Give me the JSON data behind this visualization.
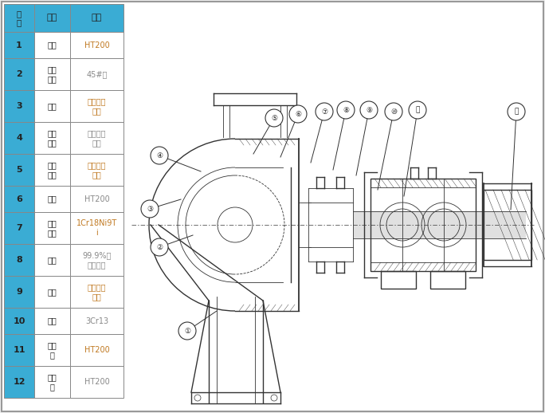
{
  "bg_color": "#f0f0f0",
  "border_color": "#999999",
  "table_blue": "#3aacd4",
  "table_white": "#ffffff",
  "text_black": "#222222",
  "text_orange": "#c07820",
  "text_gray": "#888888",
  "lc": "#333333",
  "rows": [
    {
      "num": "",
      "name": "名称",
      "material": "材质",
      "is_header": true
    },
    {
      "num": "1",
      "name": "泵体",
      "material": "HT200",
      "is_header": false
    },
    {
      "num": "2",
      "name": "叶轮\n骨架",
      "material": "45#钢",
      "is_header": false
    },
    {
      "num": "3",
      "name": "叶轮",
      "material": "聚全氟乙\n丙烯",
      "is_header": false
    },
    {
      "num": "4",
      "name": "泵体\n衬里",
      "material": "聚全氟乙\n丙烯",
      "is_header": false
    },
    {
      "num": "5",
      "name": "泵盖\n衬里",
      "material": "聚全氟乙\n丙烯",
      "is_header": false
    },
    {
      "num": "6",
      "name": "泵盖",
      "material": "HT200",
      "is_header": false
    },
    {
      "num": "7",
      "name": "机封\n压盖",
      "material": "1Cr18Ni9T\ni",
      "is_header": false
    },
    {
      "num": "8",
      "name": "静环",
      "material": "99.9%氧\n化铝陶瓷",
      "is_header": false
    },
    {
      "num": "9",
      "name": "动环",
      "material": "填充四氟\n乙烯",
      "is_header": false
    },
    {
      "num": "10",
      "name": "泵轴",
      "material": "3Cr13",
      "is_header": false
    },
    {
      "num": "11",
      "name": "轴承\n体",
      "material": "HT200",
      "is_header": false
    },
    {
      "num": "12",
      "name": "联轴\n器",
      "material": "HT200",
      "is_header": false
    }
  ],
  "callouts": [
    [
      "①",
      235,
      415,
      272,
      390
    ],
    [
      "②",
      200,
      310,
      242,
      295
    ],
    [
      "③",
      188,
      262,
      227,
      250
    ],
    [
      "④",
      200,
      195,
      252,
      215
    ],
    [
      "⑤",
      344,
      148,
      318,
      193
    ],
    [
      "⑥",
      374,
      143,
      352,
      197
    ],
    [
      "⑦",
      407,
      140,
      390,
      204
    ],
    [
      "⑧",
      434,
      138,
      418,
      213
    ],
    [
      "⑨",
      463,
      138,
      447,
      220
    ],
    [
      "⑩",
      494,
      140,
      474,
      238
    ],
    [
      "⑪",
      524,
      138,
      507,
      246
    ],
    [
      "⑫",
      648,
      140,
      641,
      263
    ]
  ]
}
